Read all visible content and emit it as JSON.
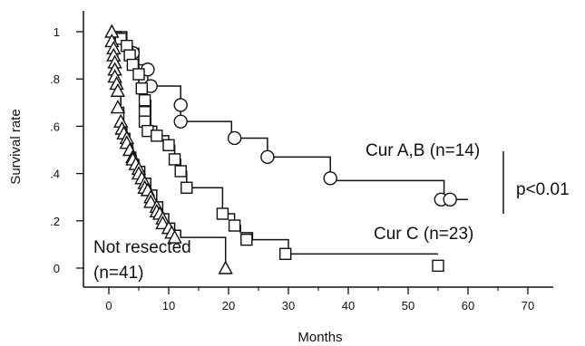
{
  "chart_data": {
    "type": "line",
    "subtype": "kaplan-meier-step",
    "title": "",
    "xlabel": "Months",
    "ylabel": "Survival rate",
    "xlim": [
      0,
      70
    ],
    "ylim": [
      0,
      1
    ],
    "x_ticks": [
      0,
      10,
      20,
      30,
      40,
      50,
      60,
      70
    ],
    "x_tick_labels": [
      "0",
      "10",
      "20",
      "30",
      "40",
      "50",
      "60",
      "70"
    ],
    "y_ticks": [
      0,
      0.2,
      0.4,
      0.6,
      0.8,
      1
    ],
    "y_tick_labels": [
      "0",
      ".2",
      ".4",
      ".6",
      ".8",
      "1"
    ],
    "grid": false,
    "series": [
      {
        "name": "Cur A,B (n=14)",
        "marker": "circle",
        "steps": [
          [
            0,
            1
          ],
          [
            3,
            0.93
          ],
          [
            5,
            0.86
          ],
          [
            6.5,
            0.77
          ],
          [
            12,
            0.62
          ],
          [
            20.5,
            0.55
          ],
          [
            26.5,
            0.47
          ],
          [
            37,
            0.37
          ],
          [
            56,
            0.29
          ],
          [
            60,
            0.29
          ]
        ],
        "censor_points": [
          [
            4,
            0.91
          ],
          [
            6.5,
            0.84
          ],
          [
            7,
            0.77
          ],
          [
            12,
            0.69
          ],
          [
            12,
            0.62
          ],
          [
            21,
            0.55
          ],
          [
            26.5,
            0.47
          ],
          [
            37,
            0.38
          ],
          [
            55.5,
            0.29
          ],
          [
            57,
            0.29
          ]
        ]
      },
      {
        "name": "Cur C (n=23)",
        "marker": "square",
        "steps": [
          [
            0,
            1
          ],
          [
            2,
            0.96
          ],
          [
            3,
            0.93
          ],
          [
            4,
            0.86
          ],
          [
            5,
            0.77
          ],
          [
            6,
            0.71
          ],
          [
            7,
            0.6
          ],
          [
            8,
            0.56
          ],
          [
            10,
            0.52
          ],
          [
            11,
            0.46
          ],
          [
            12,
            0.41
          ],
          [
            13,
            0.34
          ],
          [
            19,
            0.23
          ],
          [
            21,
            0.18
          ],
          [
            22,
            0.15
          ],
          [
            24,
            0.12
          ],
          [
            30,
            0.06
          ],
          [
            55,
            0.06
          ]
        ],
        "censor_points": [
          [
            2,
            0.97
          ],
          [
            3,
            0.94
          ],
          [
            3.5,
            0.9
          ],
          [
            4,
            0.86
          ],
          [
            5,
            0.82
          ],
          [
            5.5,
            0.76
          ],
          [
            6,
            0.71
          ],
          [
            6,
            0.66
          ],
          [
            6,
            0.62
          ],
          [
            6.5,
            0.58
          ],
          [
            8,
            0.56
          ],
          [
            10,
            0.52
          ],
          [
            11,
            0.46
          ],
          [
            12,
            0.41
          ],
          [
            13,
            0.34
          ],
          [
            19,
            0.23
          ],
          [
            21,
            0.18
          ],
          [
            23,
            0.12
          ],
          [
            29.5,
            0.06
          ],
          [
            55,
            0.01
          ]
        ]
      },
      {
        "name": "Not resected (n=41)",
        "marker": "triangle",
        "steps": [
          [
            0,
            1
          ],
          [
            1,
            0.9
          ],
          [
            1.5,
            0.78
          ],
          [
            2,
            0.68
          ],
          [
            2.5,
            0.6
          ],
          [
            3,
            0.57
          ],
          [
            3.5,
            0.53
          ],
          [
            4,
            0.49
          ],
          [
            4.5,
            0.46
          ],
          [
            5,
            0.43
          ],
          [
            6,
            0.38
          ],
          [
            7,
            0.33
          ],
          [
            8,
            0.28
          ],
          [
            9,
            0.23
          ],
          [
            10,
            0.19
          ],
          [
            11,
            0.16
          ],
          [
            12,
            0.13
          ],
          [
            19,
            0.13
          ],
          [
            19.5,
            0
          ]
        ],
        "censor_points": [
          [
            0.5,
            1
          ],
          [
            0.5,
            0.96
          ],
          [
            0.8,
            0.93
          ],
          [
            0.8,
            0.9
          ],
          [
            1,
            0.87
          ],
          [
            1,
            0.84
          ],
          [
            1,
            0.81
          ],
          [
            1.3,
            0.78
          ],
          [
            1.5,
            0.75
          ],
          [
            1.5,
            0.68
          ],
          [
            2,
            0.62
          ],
          [
            2.2,
            0.59
          ],
          [
            2.5,
            0.57
          ],
          [
            3,
            0.55
          ],
          [
            3,
            0.53
          ],
          [
            3.5,
            0.5
          ],
          [
            4,
            0.47
          ],
          [
            4,
            0.46
          ],
          [
            4.5,
            0.44
          ],
          [
            5,
            0.42
          ],
          [
            5,
            0.4
          ],
          [
            5.5,
            0.38
          ],
          [
            6,
            0.36
          ],
          [
            6,
            0.34
          ],
          [
            6.5,
            0.33
          ],
          [
            7,
            0.3
          ],
          [
            7,
            0.28
          ],
          [
            8,
            0.26
          ],
          [
            8,
            0.24
          ],
          [
            8.5,
            0.23
          ],
          [
            9,
            0.21
          ],
          [
            9,
            0.19
          ],
          [
            10,
            0.17
          ],
          [
            10.5,
            0.15
          ],
          [
            11,
            0.13
          ],
          [
            19.5,
            0
          ]
        ]
      }
    ],
    "annotations": {
      "cur_ab": "Cur A,B (n=14)",
      "cur_c": "Cur C (n=23)",
      "not_resected_line1": "Not resected",
      "not_resected_line2": "(n=41)",
      "pvalue": "p<0.01"
    }
  }
}
